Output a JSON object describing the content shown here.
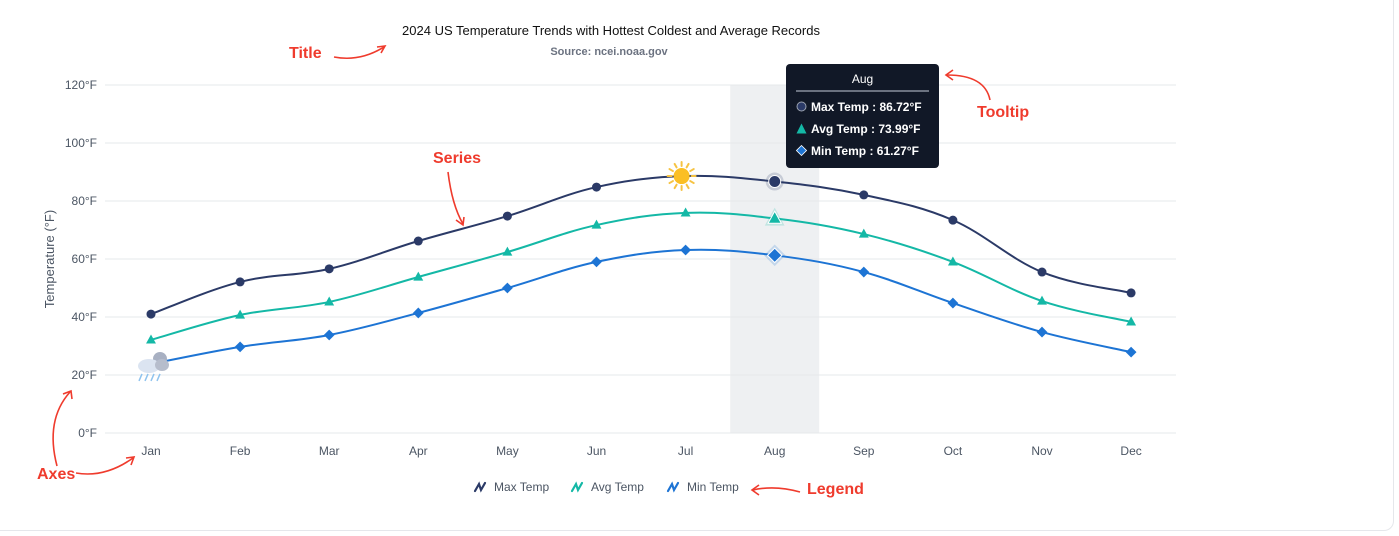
{
  "chart_data": {
    "type": "line",
    "title": "2024 US Temperature Trends with Hottest Coldest and Average Records",
    "subtitle": "Source: ncei.noaa.gov",
    "ylabel": "Temperature (°F)",
    "xlabel": "",
    "categories": [
      "Jan",
      "Feb",
      "Mar",
      "Apr",
      "May",
      "Jun",
      "Jul",
      "Aug",
      "Sep",
      "Oct",
      "Nov",
      "Dec"
    ],
    "ylim": [
      0,
      120
    ],
    "yticks": [
      "0°F",
      "20°F",
      "40°F",
      "60°F",
      "80°F",
      "100°F",
      "120°F"
    ],
    "ytick_values": [
      0,
      20,
      40,
      60,
      80,
      100,
      120
    ],
    "grid": true,
    "legend_position": "bottom",
    "series": [
      {
        "name": "Max Temp",
        "color": "#2b3a67",
        "marker": "circle",
        "values": [
          41.0,
          52.1,
          56.6,
          66.2,
          74.8,
          84.8,
          88.6,
          86.72,
          82.1,
          73.4,
          55.5,
          48.3
        ]
      },
      {
        "name": "Avg Temp",
        "color": "#14b8a6",
        "marker": "triangle",
        "values": [
          32.1,
          40.7,
          45.2,
          53.8,
          62.4,
          71.7,
          75.9,
          73.99,
          68.6,
          59.0,
          45.5,
          38.3
        ]
      },
      {
        "name": "Min Temp",
        "color": "#1d74d4",
        "marker": "diamond",
        "values": [
          23.8,
          29.7,
          33.8,
          41.4,
          50.0,
          59.0,
          63.1,
          61.27,
          55.5,
          44.8,
          34.8,
          27.9
        ]
      }
    ],
    "highlighted_category": "Aug",
    "icons": [
      {
        "category": "Jul",
        "series": "Max Temp",
        "icon": "sun-icon"
      },
      {
        "category": "Jan",
        "series": "Min Temp",
        "icon": "rain-cloud-icon"
      }
    ]
  },
  "tooltip": {
    "title": "Aug",
    "rows": [
      "Max Temp : 86.72°F",
      "Avg Temp : 73.99°F",
      "Min Temp : 61.27°F"
    ]
  },
  "annotations": {
    "title": "Title",
    "series": "Series",
    "tooltip": "Tooltip",
    "axes": "Axes",
    "legend": "Legend"
  },
  "colors": {
    "accent": "#ef3b2d",
    "grid": "#e6e8eb",
    "highlight": "#eef0f2"
  }
}
